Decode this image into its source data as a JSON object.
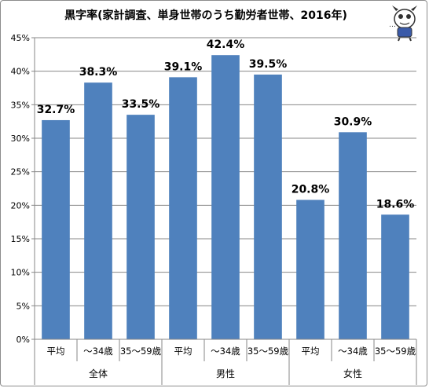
{
  "chart_data": {
    "type": "bar",
    "title": "黒字率(家計調査、単身世帯のうち勤労者世帯、2016年)",
    "groups": [
      "全体",
      "男性",
      "女性"
    ],
    "categories": [
      "平均",
      "～34歳",
      "35～59歳",
      "平均",
      "～34歳",
      "35～59歳",
      "平均",
      "～34歳",
      "35～59歳"
    ],
    "values": [
      32.7,
      38.3,
      33.5,
      39.1,
      42.4,
      39.5,
      20.8,
      30.9,
      18.6
    ],
    "data_labels": [
      "32.7%",
      "38.3%",
      "33.5%",
      "39.1%",
      "42.4%",
      "39.5%",
      "20.8%",
      "30.9%",
      "18.6%"
    ],
    "y_ticks": [
      "0%",
      "5%",
      "10%",
      "15%",
      "20%",
      "25%",
      "30%",
      "35%",
      "40%",
      "45%"
    ],
    "ylim": [
      0,
      45
    ],
    "grid": true,
    "legend": "none",
    "bar_color": "#4f81bd"
  },
  "mascot_icon": "cartoon-character-icon"
}
